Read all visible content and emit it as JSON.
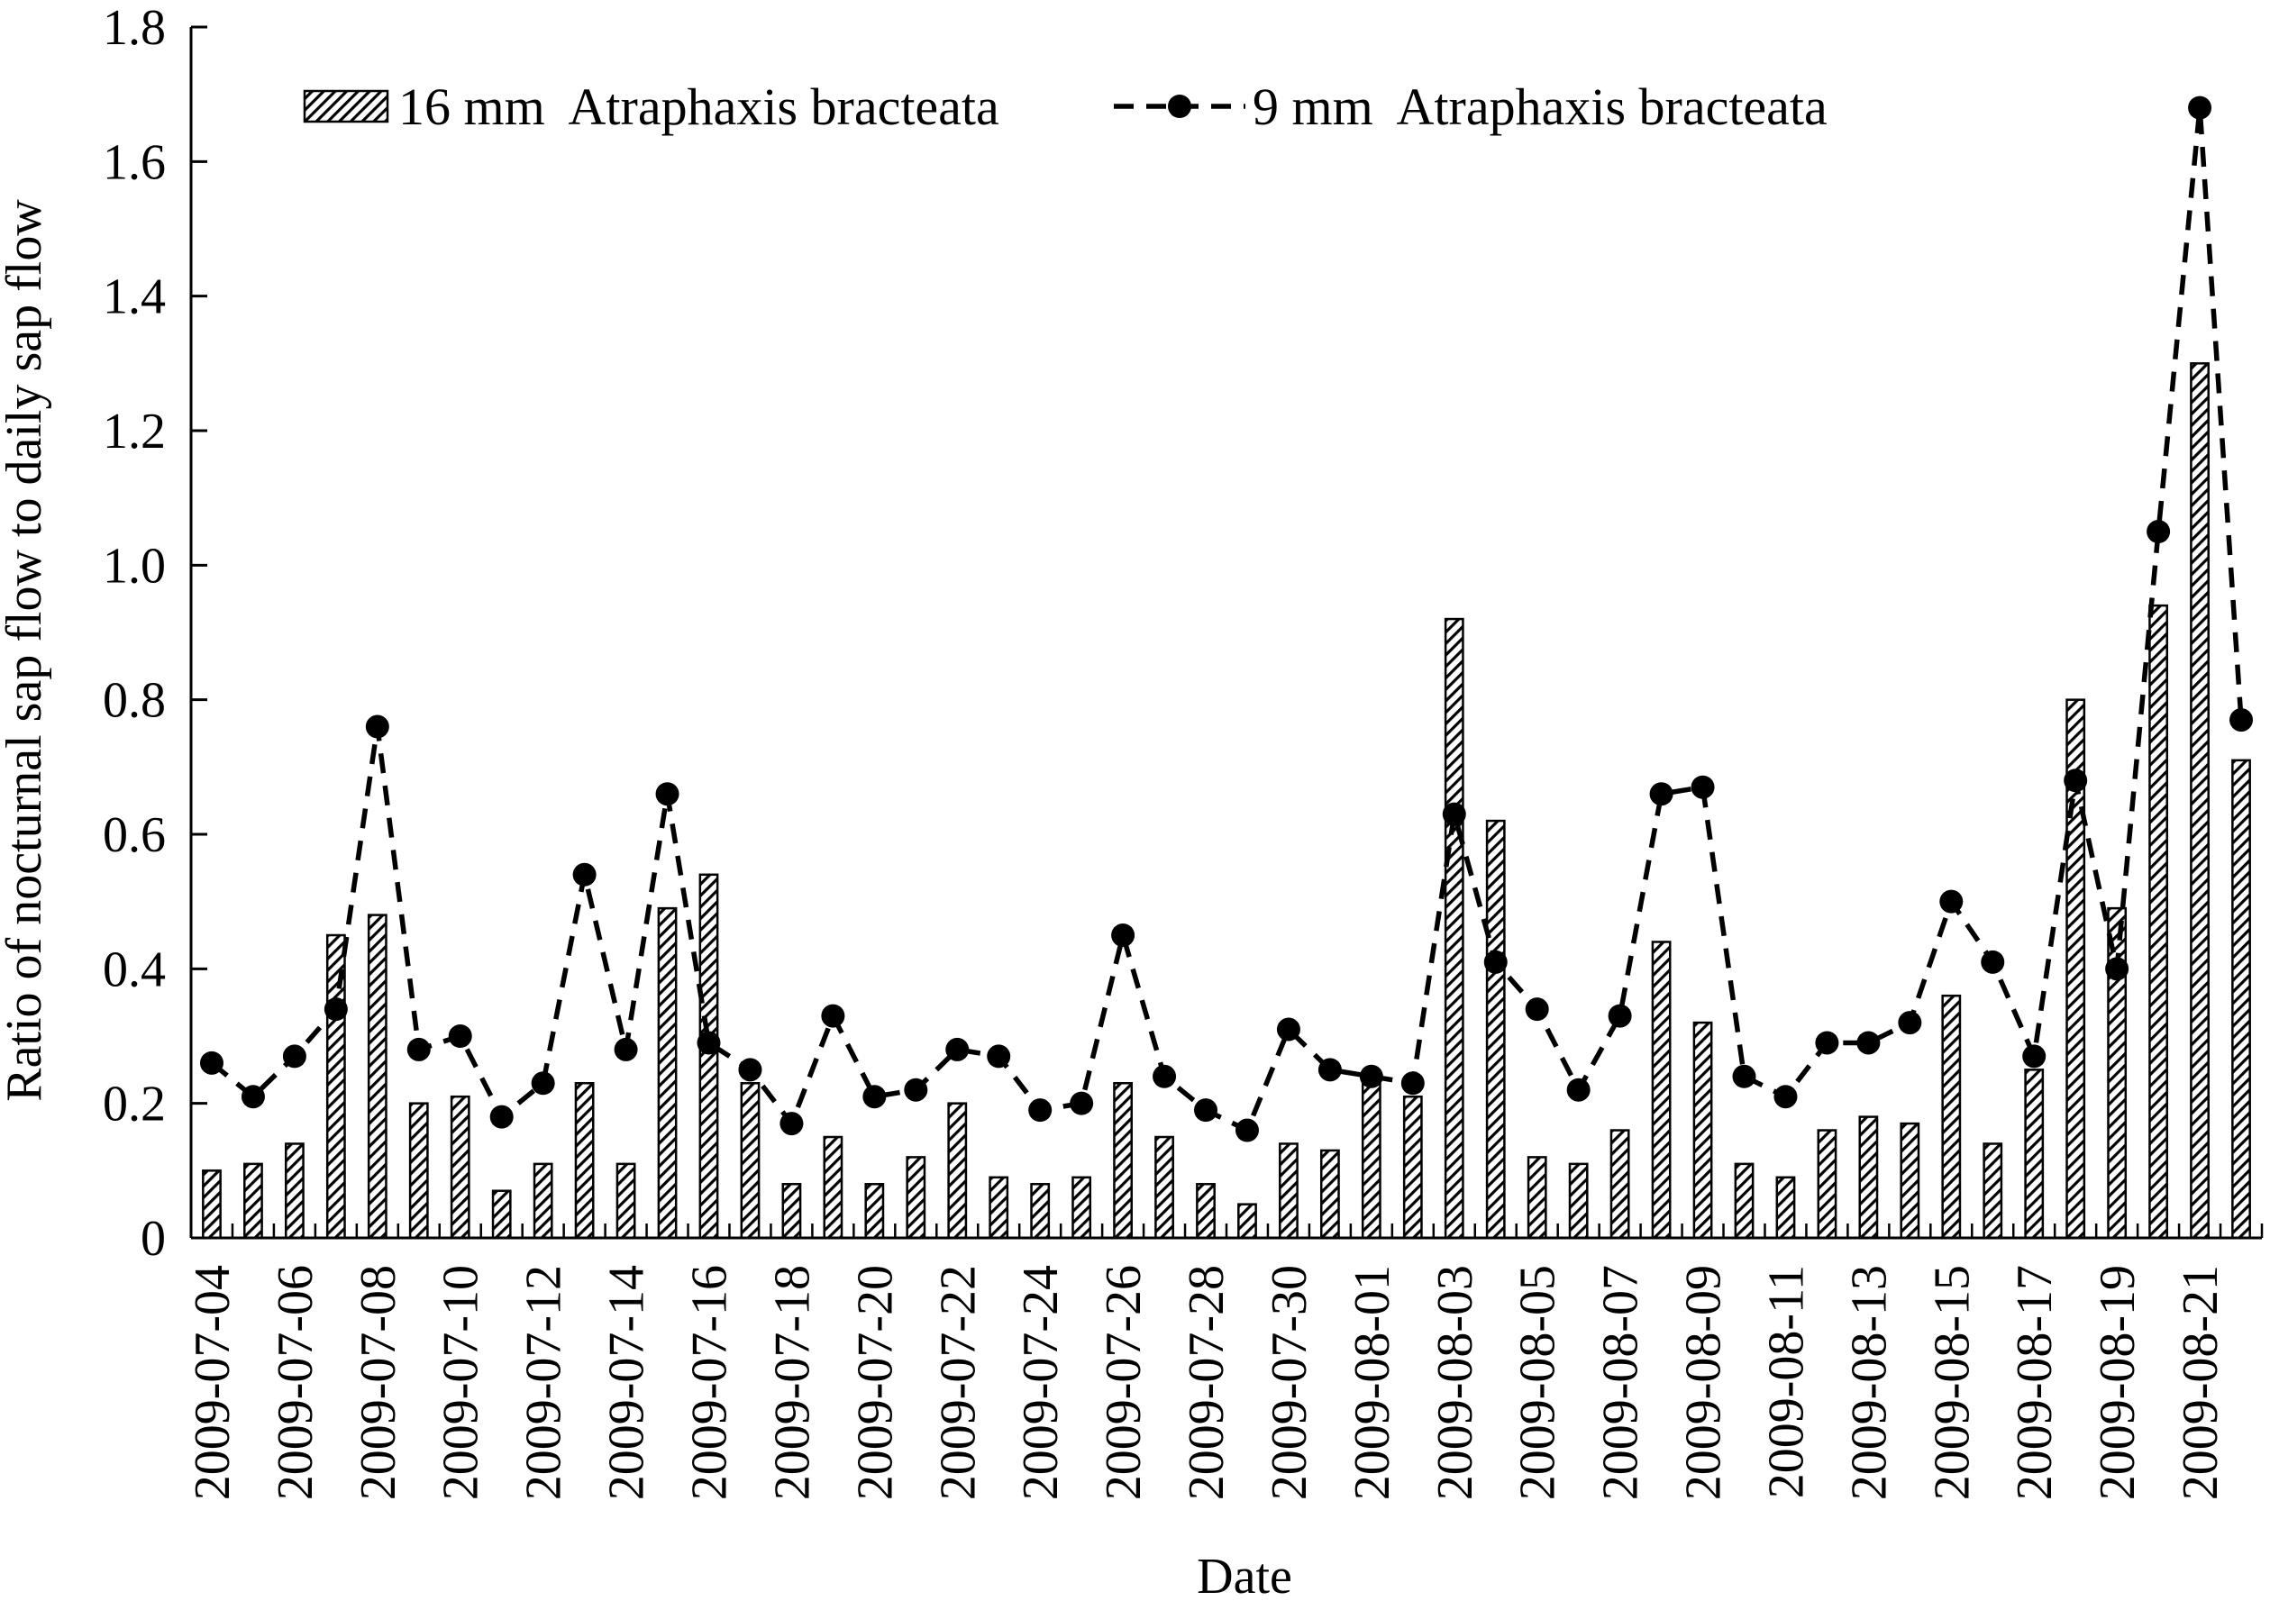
{
  "chart_data": {
    "type": "bar",
    "xlabel": "Date",
    "ylabel": "Ratio of nocturnal sap flow to daily sap flow",
    "ylim": [
      0,
      1.8
    ],
    "yticks": [
      "0",
      "0.2",
      "0.4",
      "0.6",
      "0.8",
      "1.0",
      "1.2",
      "1.4",
      "1.6",
      "1.8"
    ],
    "grid": false,
    "legend_position": "top",
    "categories": [
      "2009-07-04",
      "2009-07-05",
      "2009-07-06",
      "2009-07-07",
      "2009-07-08",
      "2009-07-09",
      "2009-07-10",
      "2009-07-11",
      "2009-07-12",
      "2009-07-13",
      "2009-07-14",
      "2009-07-15",
      "2009-07-16",
      "2009-07-17",
      "2009-07-18",
      "2009-07-19",
      "2009-07-20",
      "2009-07-21",
      "2009-07-22",
      "2009-07-23",
      "2009-07-24",
      "2009-07-25",
      "2009-07-26",
      "2009-07-27",
      "2009-07-28",
      "2009-07-29",
      "2009-07-30",
      "2009-07-31",
      "2009-08-01",
      "2009-08-02",
      "2009-08-03",
      "2009-08-04",
      "2009-08-05",
      "2009-08-06",
      "2009-08-07",
      "2009-08-08",
      "2009-08-09",
      "2009-08-10",
      "2009-08-11",
      "2009-08-12",
      "2009-08-13",
      "2009-08-14",
      "2009-08-15",
      "2009-08-16",
      "2009-08-17",
      "2009-08-18",
      "2009-08-19",
      "2009-08-20",
      "2009-08-21",
      "2009-08-22"
    ],
    "tick_labels": [
      "2009-07-04",
      "2009-07-06",
      "2009-07-08",
      "2009-07-10",
      "2009-07-12",
      "2009-07-14",
      "2009-07-16",
      "2009-07-18",
      "2009-07-20",
      "2009-07-22",
      "2009-07-24",
      "2009-07-26",
      "2009-07-28",
      "2009-07-30",
      "2009-08-01",
      "2009-08-03",
      "2009-08-05",
      "2009-08-07",
      "2009-08-09",
      "2009-08-11",
      "2009-08-13",
      "2009-08-15",
      "2009-08-17",
      "2009-08-19",
      "2009-08-21"
    ],
    "series": [
      {
        "name": "16 mm  Atraphaxis bracteata",
        "type": "bar",
        "values": [
          0.1,
          0.11,
          0.14,
          0.45,
          0.48,
          0.2,
          0.21,
          0.07,
          0.11,
          0.23,
          0.11,
          0.49,
          0.54,
          0.23,
          0.08,
          0.15,
          0.08,
          0.12,
          0.2,
          0.09,
          0.08,
          0.09,
          0.23,
          0.15,
          0.08,
          0.05,
          0.14,
          0.13,
          0.23,
          0.21,
          0.92,
          0.62,
          0.12,
          0.11,
          0.16,
          0.44,
          0.32,
          0.11,
          0.09,
          0.16,
          0.18,
          0.17,
          0.36,
          0.14,
          0.25,
          0.8,
          0.49,
          0.94,
          1.3,
          0.71
        ]
      },
      {
        "name": "9 mm  Atraphaxis bracteata",
        "type": "line",
        "values": [
          0.26,
          0.21,
          0.27,
          0.34,
          0.76,
          0.28,
          0.3,
          0.18,
          0.23,
          0.54,
          0.28,
          0.66,
          0.29,
          0.25,
          0.17,
          0.33,
          0.21,
          0.22,
          0.28,
          0.27,
          0.19,
          0.2,
          0.45,
          0.24,
          0.19,
          0.16,
          0.31,
          0.25,
          0.24,
          0.23,
          0.63,
          0.41,
          0.34,
          0.22,
          0.33,
          0.66,
          0.67,
          0.24,
          0.21,
          0.29,
          0.29,
          0.32,
          0.5,
          0.41,
          0.27,
          0.68,
          0.4,
          1.05,
          1.68,
          0.77
        ]
      }
    ]
  }
}
